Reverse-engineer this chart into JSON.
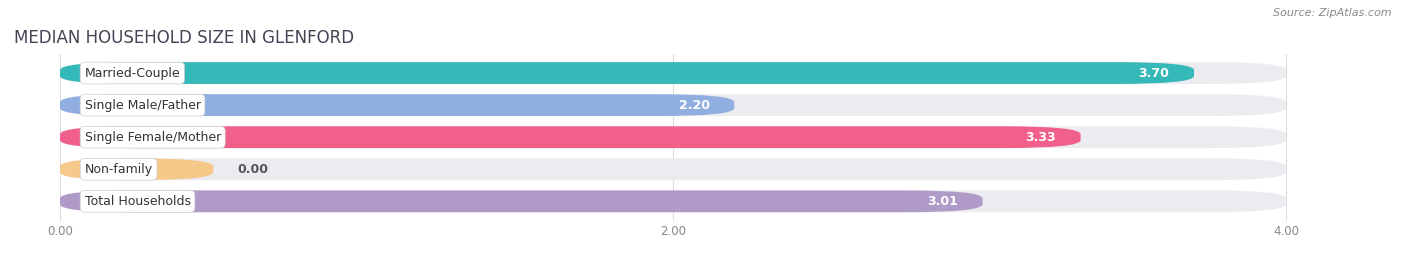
{
  "title": "MEDIAN HOUSEHOLD SIZE IN GLENFORD",
  "source": "Source: ZipAtlas.com",
  "categories": [
    "Married-Couple",
    "Single Male/Father",
    "Single Female/Mother",
    "Non-family",
    "Total Households"
  ],
  "values": [
    3.7,
    2.2,
    3.33,
    0.0,
    3.01
  ],
  "bar_colors": [
    "#35b8b8",
    "#91aee0",
    "#f0608a",
    "#f5c98a",
    "#b09ac8"
  ],
  "background_color": "#ffffff",
  "bar_bg_color": "#ebebf0",
  "label_bg_color": "#ffffff",
  "xlim": [
    -0.15,
    4.3
  ],
  "data_xlim": [
    0.0,
    4.0
  ],
  "xticks": [
    0.0,
    2.0,
    4.0
  ],
  "xtick_labels": [
    "0.00",
    "2.00",
    "4.00"
  ],
  "title_fontsize": 12,
  "label_fontsize": 9,
  "value_fontsize": 9,
  "source_fontsize": 8
}
